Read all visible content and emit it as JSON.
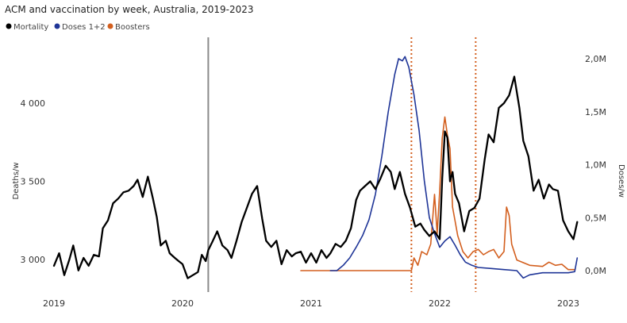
{
  "chart_data": {
    "type": "line",
    "title": "ACM and vaccination by week, Australia, 2019-2023",
    "ylabel_left": "Deaths/w",
    "ylabel_right": "Doses/w",
    "ylim_left": [
      2900,
      4300
    ],
    "ylim_right": [
      -0.1,
      2.1
    ],
    "y_ticks_left": [
      3000,
      3500,
      4000
    ],
    "y_tick_labels_left": [
      "3 000",
      "3 500",
      "4 000"
    ],
    "y_ticks_right": [
      0,
      0.5,
      1.0,
      1.5,
      2.0
    ],
    "y_tick_labels_right": [
      "0,0M",
      "0,5M",
      "1,0M",
      "1,5M",
      "2,0M"
    ],
    "xlim": [
      2019.0,
      2023.1
    ],
    "x_ticks": [
      2019,
      2020,
      2021,
      2022,
      2023
    ],
    "x_tick_labels": [
      "2019",
      "2020",
      "2021",
      "2022",
      "2023"
    ],
    "grid": false,
    "legend_position": "top-left",
    "reference_lines": [
      {
        "x": 2020.2,
        "style": "solid",
        "color": "#8a8a8a"
      },
      {
        "x": 2021.78,
        "style": "dotted",
        "color": "#d35f1e"
      },
      {
        "x": 2022.28,
        "style": "dotted",
        "color": "#d35f1e"
      }
    ],
    "series": [
      {
        "name": "Mortality",
        "axis": "left",
        "color": "#000000",
        "points": [
          [
            2019.0,
            2960
          ],
          [
            2019.04,
            3040
          ],
          [
            2019.08,
            2900
          ],
          [
            2019.12,
            3000
          ],
          [
            2019.15,
            3090
          ],
          [
            2019.19,
            2930
          ],
          [
            2019.23,
            3010
          ],
          [
            2019.27,
            2960
          ],
          [
            2019.31,
            3030
          ],
          [
            2019.35,
            3020
          ],
          [
            2019.38,
            3200
          ],
          [
            2019.42,
            3250
          ],
          [
            2019.46,
            3360
          ],
          [
            2019.5,
            3390
          ],
          [
            2019.54,
            3430
          ],
          [
            2019.58,
            3440
          ],
          [
            2019.62,
            3470
          ],
          [
            2019.65,
            3510
          ],
          [
            2019.69,
            3400
          ],
          [
            2019.73,
            3530
          ],
          [
            2019.77,
            3390
          ],
          [
            2019.8,
            3270
          ],
          [
            2019.83,
            3090
          ],
          [
            2019.87,
            3120
          ],
          [
            2019.9,
            3040
          ],
          [
            2019.94,
            3010
          ],
          [
            2019.97,
            2990
          ],
          [
            2020.0,
            2970
          ],
          [
            2020.04,
            2880
          ],
          [
            2020.08,
            2900
          ],
          [
            2020.12,
            2920
          ],
          [
            2020.15,
            3030
          ],
          [
            2020.18,
            2990
          ],
          [
            2020.2,
            3060
          ],
          [
            2020.23,
            3110
          ],
          [
            2020.27,
            3180
          ],
          [
            2020.31,
            3090
          ],
          [
            2020.35,
            3060
          ],
          [
            2020.38,
            3010
          ],
          [
            2020.42,
            3120
          ],
          [
            2020.46,
            3240
          ],
          [
            2020.5,
            3330
          ],
          [
            2020.54,
            3420
          ],
          [
            2020.58,
            3470
          ],
          [
            2020.62,
            3260
          ],
          [
            2020.65,
            3120
          ],
          [
            2020.69,
            3080
          ],
          [
            2020.73,
            3120
          ],
          [
            2020.77,
            2970
          ],
          [
            2020.81,
            3060
          ],
          [
            2020.85,
            3020
          ],
          [
            2020.88,
            3040
          ],
          [
            2020.92,
            3050
          ],
          [
            2020.96,
            2980
          ],
          [
            2021.0,
            3040
          ],
          [
            2021.04,
            2980
          ],
          [
            2021.08,
            3060
          ],
          [
            2021.12,
            3010
          ],
          [
            2021.15,
            3040
          ],
          [
            2021.19,
            3100
          ],
          [
            2021.23,
            3080
          ],
          [
            2021.27,
            3120
          ],
          [
            2021.31,
            3200
          ],
          [
            2021.35,
            3380
          ],
          [
            2021.38,
            3440
          ],
          [
            2021.42,
            3470
          ],
          [
            2021.46,
            3500
          ],
          [
            2021.5,
            3450
          ],
          [
            2021.54,
            3520
          ],
          [
            2021.58,
            3600
          ],
          [
            2021.62,
            3560
          ],
          [
            2021.65,
            3450
          ],
          [
            2021.69,
            3560
          ],
          [
            2021.73,
            3420
          ],
          [
            2021.77,
            3330
          ],
          [
            2021.81,
            3210
          ],
          [
            2021.85,
            3230
          ],
          [
            2021.88,
            3190
          ],
          [
            2021.92,
            3150
          ],
          [
            2021.96,
            3180
          ],
          [
            2022.0,
            3130
          ],
          [
            2022.02,
            3520
          ],
          [
            2022.04,
            3820
          ],
          [
            2022.06,
            3780
          ],
          [
            2022.08,
            3500
          ],
          [
            2022.1,
            3560
          ],
          [
            2022.12,
            3420
          ],
          [
            2022.15,
            3360
          ],
          [
            2022.19,
            3180
          ],
          [
            2022.23,
            3310
          ],
          [
            2022.27,
            3330
          ],
          [
            2022.31,
            3390
          ],
          [
            2022.35,
            3640
          ],
          [
            2022.38,
            3800
          ],
          [
            2022.42,
            3750
          ],
          [
            2022.46,
            3970
          ],
          [
            2022.5,
            4000
          ],
          [
            2022.54,
            4050
          ],
          [
            2022.58,
            4170
          ],
          [
            2022.62,
            3970
          ],
          [
            2022.65,
            3760
          ],
          [
            2022.69,
            3660
          ],
          [
            2022.73,
            3440
          ],
          [
            2022.77,
            3510
          ],
          [
            2022.81,
            3390
          ],
          [
            2022.85,
            3480
          ],
          [
            2022.88,
            3450
          ],
          [
            2022.92,
            3440
          ],
          [
            2022.96,
            3250
          ],
          [
            2023.0,
            3180
          ],
          [
            2023.04,
            3130
          ],
          [
            2023.07,
            3240
          ]
        ]
      },
      {
        "name": "Doses 1+2",
        "axis": "right",
        "color": "#1f3597",
        "points": [
          [
            2021.15,
            0.0
          ],
          [
            2021.2,
            0.0
          ],
          [
            2021.25,
            0.05
          ],
          [
            2021.3,
            0.12
          ],
          [
            2021.35,
            0.22
          ],
          [
            2021.4,
            0.33
          ],
          [
            2021.45,
            0.48
          ],
          [
            2021.5,
            0.72
          ],
          [
            2021.55,
            1.08
          ],
          [
            2021.6,
            1.5
          ],
          [
            2021.65,
            1.85
          ],
          [
            2021.68,
            2.0
          ],
          [
            2021.71,
            1.98
          ],
          [
            2021.73,
            2.02
          ],
          [
            2021.76,
            1.92
          ],
          [
            2021.8,
            1.66
          ],
          [
            2021.84,
            1.32
          ],
          [
            2021.88,
            0.85
          ],
          [
            2021.92,
            0.5
          ],
          [
            2021.96,
            0.35
          ],
          [
            2022.0,
            0.22
          ],
          [
            2022.04,
            0.28
          ],
          [
            2022.08,
            0.32
          ],
          [
            2022.12,
            0.24
          ],
          [
            2022.16,
            0.15
          ],
          [
            2022.2,
            0.08
          ],
          [
            2022.25,
            0.05
          ],
          [
            2022.3,
            0.03
          ],
          [
            2022.4,
            0.02
          ],
          [
            2022.5,
            0.01
          ],
          [
            2022.6,
            0.0
          ],
          [
            2022.65,
            -0.07
          ],
          [
            2022.7,
            -0.04
          ],
          [
            2022.8,
            -0.02
          ],
          [
            2022.9,
            -0.02
          ],
          [
            2023.0,
            -0.02
          ],
          [
            2023.05,
            -0.01
          ],
          [
            2023.07,
            0.12
          ]
        ]
      },
      {
        "name": "Boosters",
        "axis": "right",
        "color": "#d35f1e",
        "points": [
          [
            2020.92,
            0.0
          ],
          [
            2021.5,
            0.0
          ],
          [
            2021.78,
            0.0
          ],
          [
            2021.8,
            0.12
          ],
          [
            2021.83,
            0.05
          ],
          [
            2021.86,
            0.18
          ],
          [
            2021.9,
            0.15
          ],
          [
            2021.93,
            0.25
          ],
          [
            2021.96,
            0.72
          ],
          [
            2021.98,
            0.35
          ],
          [
            2022.0,
            0.75
          ],
          [
            2022.02,
            1.25
          ],
          [
            2022.04,
            1.45
          ],
          [
            2022.06,
            1.28
          ],
          [
            2022.08,
            1.15
          ],
          [
            2022.1,
            0.6
          ],
          [
            2022.14,
            0.33
          ],
          [
            2022.18,
            0.18
          ],
          [
            2022.22,
            0.12
          ],
          [
            2022.26,
            0.18
          ],
          [
            2022.3,
            0.2
          ],
          [
            2022.34,
            0.15
          ],
          [
            2022.38,
            0.18
          ],
          [
            2022.42,
            0.2
          ],
          [
            2022.46,
            0.12
          ],
          [
            2022.5,
            0.18
          ],
          [
            2022.52,
            0.6
          ],
          [
            2022.54,
            0.52
          ],
          [
            2022.56,
            0.25
          ],
          [
            2022.6,
            0.1
          ],
          [
            2022.7,
            0.05
          ],
          [
            2022.8,
            0.04
          ],
          [
            2022.85,
            0.08
          ],
          [
            2022.9,
            0.05
          ],
          [
            2022.95,
            0.06
          ],
          [
            2023.0,
            0.01
          ],
          [
            2023.05,
            0.01
          ]
        ]
      }
    ]
  }
}
